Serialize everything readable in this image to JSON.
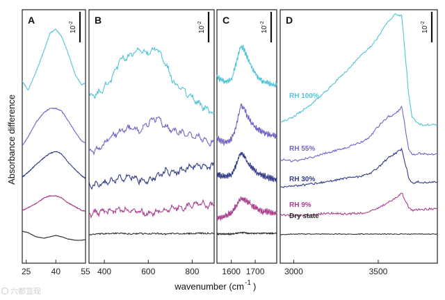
{
  "chart_data": {
    "type": "line",
    "figure": {
      "ylabel": "Absorbance difference",
      "xlabel_main": "wavenumber (cm",
      "xlabel_sup": "-1",
      "xlabel_end": ")"
    },
    "series_colors": {
      "RH 100%": "#4fc3d9",
      "RH 55%": "#6f63c4",
      "RH 30%": "#2e3a86",
      "RH 9%": "#a83e8c",
      "Dry state": "#2a2a2a"
    },
    "panels": [
      {
        "label": "A",
        "xlim": [
          23,
          55
        ],
        "xticks": [
          25,
          40,
          55
        ],
        "scale_bar": "10",
        "scale_bar_exp": "-2",
        "series": [
          {
            "name": "RH 100%",
            "x": [
              23,
              26,
              30,
              34,
              37,
              40,
              43,
              46,
              50,
              53,
              55
            ],
            "y": [
              248,
              235,
              262,
              292,
              317,
              323,
              312,
              290,
              256,
              243,
              246
            ]
          },
          {
            "name": "RH 55%",
            "x": [
              23,
              26,
              30,
              34,
              37,
              40,
              43,
              46,
              50,
              53,
              55
            ],
            "y": [
              155,
              168,
              189,
              203,
              209,
              209,
              205,
              192,
              174,
              162,
              159
            ]
          },
          {
            "name": "RH 30%",
            "x": [
              23,
              26,
              30,
              34,
              37,
              40,
              43,
              46,
              50,
              53,
              55
            ],
            "y": [
              110,
              117,
              128,
              138,
              144,
              147,
              143,
              132,
              120,
              112,
              108
            ]
          },
          {
            "name": "RH 9%",
            "x": [
              23,
              26,
              30,
              34,
              37,
              40,
              43,
              46,
              50,
              53,
              55
            ],
            "y": [
              62,
              66,
              72,
              80,
              83,
              83,
              80,
              73,
              67,
              62,
              61
            ]
          },
          {
            "name": "Dry state",
            "x": [
              23,
              26,
              30,
              34,
              37,
              40,
              43,
              46,
              50,
              53,
              55
            ],
            "y": [
              32,
              30,
              24,
              22,
              24,
              26,
              24,
              21,
              19,
              19,
              20
            ]
          }
        ]
      },
      {
        "label": "B",
        "xlim": [
          330,
          900
        ],
        "xticks": [
          400,
          600,
          800
        ],
        "scale_bar": "10",
        "scale_bar_exp": "-2",
        "series": [
          {
            "name": "RH 100%",
            "x": [
              330,
              380,
              430,
              470,
              520,
              560,
              600,
              640,
              680,
              720,
              760,
              800,
              840,
              880,
              900
            ],
            "y": [
              224,
              232,
              250,
              278,
              286,
              293,
              288,
              295,
              272,
              244,
              235,
              225,
              213,
              205,
              200
            ]
          },
          {
            "name": "RH 55%",
            "x": [
              330,
              380,
              430,
              470,
              520,
              560,
              600,
              640,
              680,
              720,
              760,
              800,
              840,
              880,
              900
            ],
            "y": [
              145,
              152,
              168,
              175,
              181,
              176,
              188,
              196,
              182,
              177,
              174,
              170,
              167,
              160,
              160
            ]
          },
          {
            "name": "RH 30%",
            "x": [
              330,
              380,
              430,
              470,
              520,
              560,
              600,
              640,
              680,
              720,
              760,
              800,
              840,
              880,
              900
            ],
            "y": [
              98,
              100,
              104,
              108,
              111,
              105,
              103,
              112,
              118,
              116,
              120,
              125,
              127,
              124,
              128
            ]
          },
          {
            "name": "RH 9%",
            "x": [
              330,
              380,
              430,
              470,
              520,
              560,
              600,
              640,
              680,
              720,
              760,
              800,
              840,
              880,
              900
            ],
            "y": [
              57,
              60,
              62,
              63,
              61,
              60,
              57,
              60,
              63,
              66,
              65,
              71,
              72,
              68,
              70
            ]
          },
          {
            "name": "Dry state",
            "x": [
              330,
              380,
              430,
              470,
              520,
              560,
              600,
              640,
              680,
              720,
              760,
              800,
              840,
              880,
              900
            ],
            "y": [
              27,
              28,
              29,
              29,
              28,
              29,
              28,
              29,
              28,
              29,
              28,
              29,
              29,
              29,
              29
            ]
          }
        ]
      },
      {
        "label": "C",
        "xlim": [
          1540,
          1790
        ],
        "xticks": [
          1600,
          1700
        ],
        "scale_bar": "10",
        "scale_bar_exp": "-2",
        "series": [
          {
            "name": "RH 100%",
            "x": [
              1540,
              1570,
              1600,
              1620,
              1640,
              1655,
              1670,
              1690,
              1710,
              1730,
              1760,
              1790
            ],
            "y": [
              254,
              247,
              250,
              273,
              300,
              293,
              279,
              264,
              255,
              248,
              245,
              242
            ]
          },
          {
            "name": "RH 55%",
            "x": [
              1540,
              1570,
              1600,
              1620,
              1640,
              1655,
              1670,
              1690,
              1710,
              1730,
              1760,
              1790
            ],
            "y": [
              166,
              160,
              164,
              182,
              214,
              208,
              196,
              186,
              179,
              175,
              171,
              168
            ]
          },
          {
            "name": "RH 30%",
            "x": [
              1540,
              1570,
              1600,
              1620,
              1640,
              1655,
              1670,
              1690,
              1710,
              1730,
              1760,
              1790
            ],
            "y": [
              115,
              110,
              113,
              127,
              145,
              140,
              130,
              122,
              116,
              112,
              109,
              107
            ]
          },
          {
            "name": "RH 9%",
            "x": [
              1540,
              1570,
              1600,
              1620,
              1640,
              1655,
              1670,
              1690,
              1710,
              1730,
              1760,
              1790
            ],
            "y": [
              50,
              53,
              58,
              69,
              79,
              78,
              74,
              68,
              64,
              61,
              59,
              57
            ]
          },
          {
            "name": "Dry state",
            "x": [
              1540,
              1570,
              1600,
              1620,
              1640,
              1655,
              1670,
              1690,
              1710,
              1730,
              1760,
              1790
            ],
            "y": [
              28,
              28,
              28,
              29,
              30,
              30,
              29,
              29,
              29,
              29,
              29,
              29
            ]
          }
        ]
      },
      {
        "label": "D",
        "xlim": [
          2920,
          3850
        ],
        "xticks": [
          3000,
          3500
        ],
        "scale_bar": "10",
        "scale_bar_exp": "-2",
        "series": [
          {
            "name": "RH 100%",
            "x": [
              2920,
              3000,
              3100,
              3200,
              3300,
              3400,
              3450,
              3500,
              3560,
              3600,
              3640,
              3680,
              3700,
              3740,
              3800,
              3850
            ],
            "y": [
              188,
              197,
              214,
              236,
              260,
              286,
              296,
              312,
              334,
              345,
              342,
              230,
              196,
              186,
              185,
              185
            ]
          },
          {
            "name": "RH 55%",
            "x": [
              2920,
              3000,
              3100,
              3200,
              3300,
              3400,
              3450,
              3500,
              3560,
              3600,
              3640,
              3680,
              3700,
              3740,
              3800,
              3850
            ],
            "y": [
              135,
              133,
              138,
              145,
              152,
              160,
              168,
              183,
              197,
              200,
              211,
              150,
              142,
              144,
              143,
              143
            ]
          },
          {
            "name": "RH 30%",
            "x": [
              2920,
              3000,
              3100,
              3200,
              3300,
              3400,
              3450,
              3500,
              3560,
              3600,
              3640,
              3680,
              3700,
              3740,
              3800,
              3850
            ],
            "y": [
              96,
              97,
              100,
              103,
              108,
              111,
              115,
              124,
              138,
              144,
              150,
              110,
              101,
              103,
              102,
              103
            ]
          },
          {
            "name": "RH 9%",
            "x": [
              2920,
              3000,
              3100,
              3200,
              3300,
              3400,
              3450,
              3500,
              3560,
              3600,
              3640,
              3680,
              3700,
              3740,
              3800,
              3850
            ],
            "y": [
              56,
              54,
              56,
              58,
              57,
              58,
              60,
              66,
              74,
              79,
              87,
              66,
              62,
              63,
              64,
              64
            ]
          },
          {
            "name": "Dry state",
            "x": [
              2920,
              3000,
              3100,
              3200,
              3300,
              3400,
              3450,
              3500,
              3560,
              3600,
              3640,
              3680,
              3700,
              3740,
              3800,
              3850
            ],
            "y": [
              27,
              28,
              28,
              28,
              28,
              28,
              28,
              28,
              28,
              28,
              28,
              28,
              28,
              28,
              28,
              28
            ]
          }
        ],
        "annotations": [
          "RH 100%",
          "RH 55%",
          "RH 30%",
          "RH 9%",
          "Dry state"
        ]
      }
    ]
  },
  "watermark": "六都宣现"
}
